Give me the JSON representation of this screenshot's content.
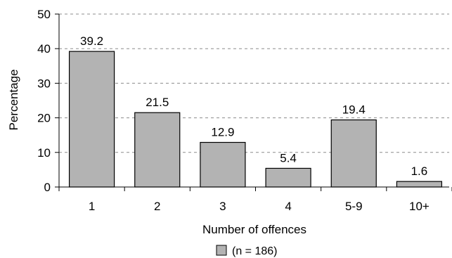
{
  "chart_data": {
    "type": "bar",
    "categories": [
      "1",
      "2",
      "3",
      "4",
      "5-9",
      "10+"
    ],
    "series": [
      {
        "name": "(n = 186)",
        "values": [
          39.2,
          21.5,
          12.9,
          5.4,
          19.4,
          1.6
        ]
      }
    ],
    "data_labels": [
      "39.2",
      "21.5",
      "12.9",
      "5.4",
      "19.4",
      "1.6"
    ],
    "xlabel": "Number of offences",
    "ylabel": "Percentage",
    "ylim": [
      0,
      50
    ],
    "yticks": [
      0,
      10,
      20,
      30,
      40,
      50
    ],
    "grid": "horizontal dashed",
    "legend": {
      "position": "bottom",
      "label": "(n = 186)"
    },
    "colors": {
      "bar_fill": "#b3b3b3",
      "bar_stroke": "#000000",
      "grid": "#8c8c8c"
    }
  }
}
